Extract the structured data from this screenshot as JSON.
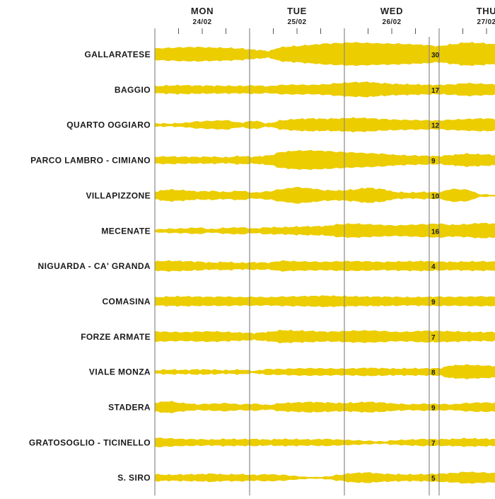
{
  "chart_data": {
    "type": "area",
    "title": "",
    "xlabel": "",
    "ylabel": "",
    "color": "#ECCD00",
    "days": [
      {
        "label": "MON",
        "date": "24/02"
      },
      {
        "label": "TUE",
        "date": "25/02"
      },
      {
        "label": "WED",
        "date": "26/02"
      },
      {
        "label": "THU",
        "date": "27/02"
      }
    ],
    "value_labels_day": "WED",
    "series": [
      {
        "name": "GALLARATESE",
        "label_value": "30",
        "profile": [
          0.5,
          0.55,
          0.6,
          0.62,
          0.58,
          0.55,
          0.5,
          0.4,
          0.3,
          0.62,
          0.7,
          0.8,
          0.9,
          0.95,
          1.0,
          0.96,
          0.92,
          0.9,
          0.85,
          0.8,
          0.7,
          0.85,
          1.0,
          0.95,
          0.85
        ]
      },
      {
        "name": "BAGGIO",
        "label_value": "17",
        "profile": [
          0.3,
          0.35,
          0.38,
          0.35,
          0.34,
          0.33,
          0.32,
          0.36,
          0.3,
          0.4,
          0.42,
          0.4,
          0.45,
          0.55,
          0.62,
          0.65,
          0.55,
          0.48,
          0.45,
          0.42,
          0.4,
          0.45,
          0.55,
          0.5,
          0.45
        ]
      },
      {
        "name": "QUARTO OGGIARO",
        "label_value": "12",
        "profile": [
          0.15,
          0.12,
          0.18,
          0.3,
          0.35,
          0.4,
          0.2,
          0.35,
          0.15,
          0.4,
          0.5,
          0.55,
          0.52,
          0.55,
          0.6,
          0.58,
          0.5,
          0.45,
          0.42,
          0.4,
          0.38,
          0.45,
          0.5,
          0.55,
          0.52
        ]
      },
      {
        "name": "PARCO LAMBRO - CIMIANO",
        "label_value": "9",
        "profile": [
          0.3,
          0.32,
          0.3,
          0.28,
          0.3,
          0.25,
          0.35,
          0.3,
          0.4,
          0.7,
          0.8,
          0.82,
          0.78,
          0.7,
          0.65,
          0.6,
          0.55,
          0.45,
          0.4,
          0.38,
          0.35,
          0.45,
          0.55,
          0.5,
          0.45
        ]
      },
      {
        "name": "VILLAPIZZONE",
        "label_value": "10",
        "profile": [
          0.35,
          0.5,
          0.45,
          0.35,
          0.38,
          0.3,
          0.4,
          0.25,
          0.35,
          0.55,
          0.7,
          0.6,
          0.45,
          0.42,
          0.5,
          0.65,
          0.55,
          0.3,
          0.25,
          0.3,
          0.28,
          0.55,
          0.5,
          0.12,
          0.05
        ]
      },
      {
        "name": "MECENATE",
        "label_value": "16",
        "profile": [
          0.12,
          0.18,
          0.2,
          0.28,
          0.15,
          0.25,
          0.3,
          0.2,
          0.3,
          0.3,
          0.35,
          0.38,
          0.4,
          0.55,
          0.6,
          0.55,
          0.5,
          0.45,
          0.5,
          0.55,
          0.6,
          0.5,
          0.55,
          0.65,
          0.6
        ]
      },
      {
        "name": "NIGUARDA - CA' GRANDA",
        "label_value": "4",
        "profile": [
          0.4,
          0.45,
          0.42,
          0.38,
          0.3,
          0.35,
          0.28,
          0.32,
          0.3,
          0.45,
          0.4,
          0.38,
          0.36,
          0.4,
          0.42,
          0.4,
          0.35,
          0.38,
          0.4,
          0.42,
          0.38,
          0.35,
          0.38,
          0.4,
          0.38
        ]
      },
      {
        "name": "COMASINA",
        "label_value": "9",
        "profile": [
          0.35,
          0.4,
          0.42,
          0.4,
          0.38,
          0.4,
          0.36,
          0.38,
          0.35,
          0.4,
          0.42,
          0.45,
          0.48,
          0.45,
          0.42,
          0.4,
          0.4,
          0.38,
          0.35,
          0.38,
          0.4,
          0.38,
          0.4,
          0.42,
          0.4
        ]
      },
      {
        "name": "FORZE ARMATE",
        "label_value": "7",
        "profile": [
          0.45,
          0.4,
          0.38,
          0.42,
          0.45,
          0.4,
          0.35,
          0.3,
          0.4,
          0.55,
          0.5,
          0.48,
          0.42,
          0.45,
          0.5,
          0.52,
          0.48,
          0.4,
          0.42,
          0.5,
          0.48,
          0.45,
          0.4,
          0.38,
          0.4
        ]
      },
      {
        "name": "VIALE MONZA",
        "label_value": "8",
        "profile": [
          0.15,
          0.2,
          0.18,
          0.22,
          0.2,
          0.15,
          0.2,
          0.1,
          0.25,
          0.25,
          0.3,
          0.32,
          0.3,
          0.28,
          0.3,
          0.35,
          0.32,
          0.28,
          0.3,
          0.3,
          0.32,
          0.55,
          0.6,
          0.55,
          0.5
        ]
      },
      {
        "name": "STADERA",
        "label_value": "9",
        "profile": [
          0.4,
          0.5,
          0.35,
          0.25,
          0.3,
          0.35,
          0.25,
          0.3,
          0.2,
          0.35,
          0.4,
          0.45,
          0.4,
          0.35,
          0.38,
          0.45,
          0.4,
          0.3,
          0.25,
          0.3,
          0.28,
          0.25,
          0.35,
          0.4,
          0.38
        ]
      },
      {
        "name": "GRATOSOGLIO - TICINELLO",
        "label_value": "7",
        "profile": [
          0.4,
          0.35,
          0.3,
          0.28,
          0.25,
          0.3,
          0.28,
          0.3,
          0.25,
          0.3,
          0.28,
          0.26,
          0.3,
          0.25,
          0.2,
          0.15,
          0.1,
          0.2,
          0.25,
          0.3,
          0.28,
          0.3,
          0.35,
          0.32,
          0.3
        ]
      },
      {
        "name": "S. SIRO",
        "label_value": "5",
        "profile": [
          0.3,
          0.25,
          0.28,
          0.3,
          0.35,
          0.28,
          0.3,
          0.25,
          0.3,
          0.25,
          0.15,
          0.05,
          0.1,
          0.25,
          0.4,
          0.45,
          0.35,
          0.3,
          0.28,
          0.3,
          0.35,
          0.4,
          0.5,
          0.45,
          0.4
        ]
      }
    ]
  }
}
